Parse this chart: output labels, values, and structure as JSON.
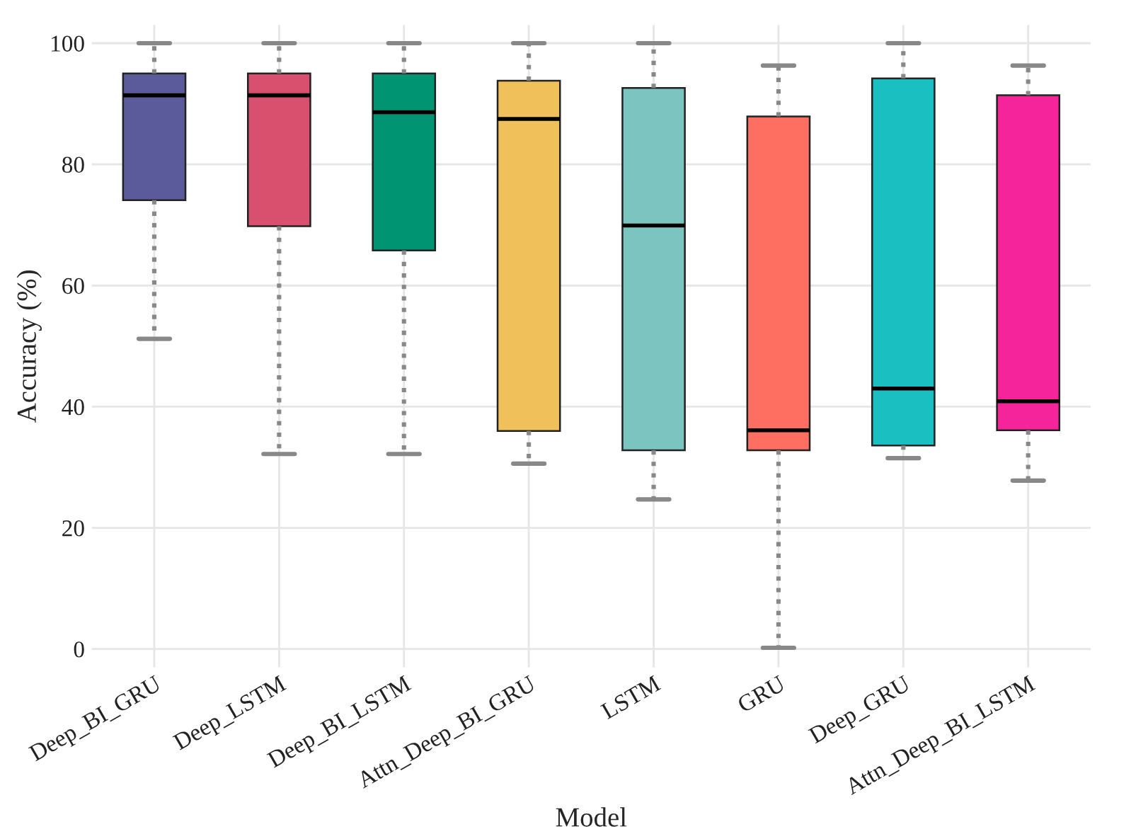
{
  "chart_data": {
    "type": "box",
    "xlabel": "Model",
    "ylabel": "Accuracy (%)",
    "categories": [
      "Deep_BI_GRU",
      "Deep_LSTM",
      "Deep_BI_LSTM",
      "Attn_Deep_BI_GRU",
      "LSTM",
      "GRU",
      "Deep_GRU",
      "Attn_Deep_BI_LSTM"
    ],
    "boxes": [
      {
        "low": 51.2,
        "q1": 74.1,
        "median": 91.4,
        "q3": 95.0,
        "high": 100
      },
      {
        "low": 32.2,
        "q1": 69.8,
        "median": 91.4,
        "q3": 95.0,
        "high": 100
      },
      {
        "low": 32.2,
        "q1": 65.8,
        "median": 88.6,
        "q3": 95.0,
        "high": 100
      },
      {
        "low": 30.6,
        "q1": 36.0,
        "median": 87.5,
        "q3": 93.8,
        "high": 100
      },
      {
        "low": 24.7,
        "q1": 32.8,
        "median": 69.9,
        "q3": 92.6,
        "high": 100
      },
      {
        "low": 0.2,
        "q1": 32.8,
        "median": 36.1,
        "q3": 87.9,
        "high": 96.3
      },
      {
        "low": 31.5,
        "q1": 33.6,
        "median": 43.0,
        "q3": 94.2,
        "high": 100
      },
      {
        "low": 27.8,
        "q1": 36.1,
        "median": 40.9,
        "q3": 91.4,
        "high": 96.3
      }
    ],
    "colors": [
      "#5b5b9c",
      "#d94f6e",
      "#009473",
      "#f0c05a",
      "#7cc4c0",
      "#ff6f61",
      "#1abfc2",
      "#f5249a"
    ],
    "ylim": [
      -3,
      103
    ],
    "yticks": [
      0,
      20,
      40,
      60,
      80,
      100
    ],
    "grid": true,
    "legend": false
  }
}
